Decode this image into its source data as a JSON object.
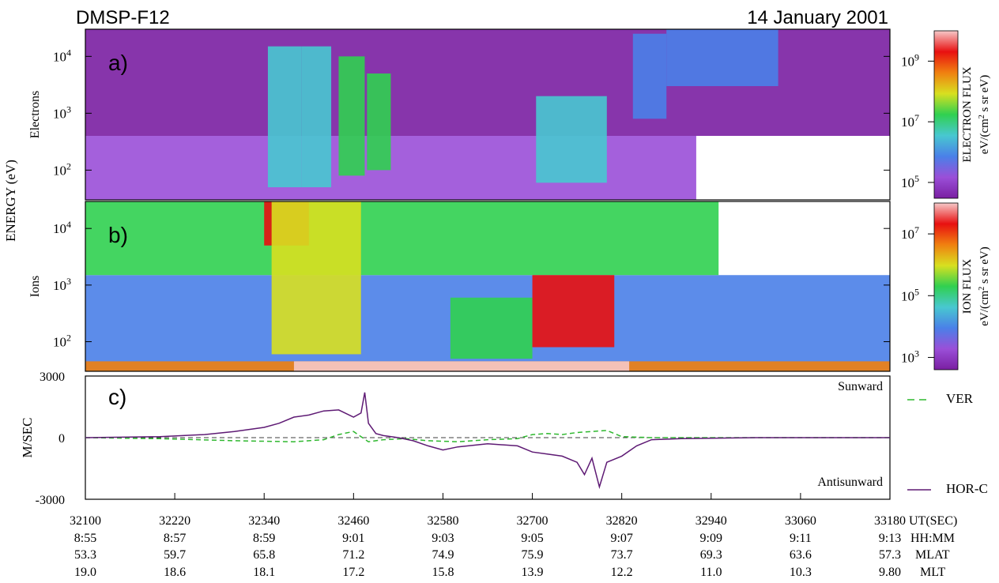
{
  "header": {
    "satellite": "DMSP-F12",
    "date": "14 January 2001"
  },
  "colors": {
    "spectrogram": [
      "#7a1fa2",
      "#9a4fd8",
      "#4a80e8",
      "#48c8d0",
      "#30d050",
      "#d8e020",
      "#f08010",
      "#e81010",
      "#f6c8c8"
    ],
    "ver_line": "#2fb82f",
    "hor_line": "#5e1a74"
  },
  "chart_data": [
    {
      "id": "a",
      "type": "heatmap",
      "panel_label": "a)",
      "ylabel": "Electrons",
      "shared_ylabel": "ENERGY (eV)",
      "y_scale": "log",
      "ylim": [
        30,
        30000
      ],
      "y_ticks": [
        {
          "exp": "2",
          "value": 100
        },
        {
          "exp": "3",
          "value": 1000
        },
        {
          "exp": "4",
          "value": 10000
        }
      ],
      "colorbar": {
        "label": "ELECTRON FLUX",
        "units": "eV/(cm",
        "units_sup": "2",
        "units_tail": " s sr eV)",
        "scale": "log",
        "range": [
          30000,
          10000000000
        ],
        "ticks": [
          {
            "exp": "5",
            "value": 100000
          },
          {
            "exp": "7",
            "value": 10000000
          },
          {
            "exp": "9",
            "value": 1000000000
          }
        ]
      },
      "regions": [
        {
          "t": [
            32100,
            32920
          ],
          "e": [
            30,
            400
          ],
          "level": 0.12
        },
        {
          "t": [
            32100,
            33180
          ],
          "e": [
            400,
            30000
          ],
          "level": 0.05
        },
        {
          "t": [
            32345,
            32390
          ],
          "e": [
            50,
            15000
          ],
          "level": 0.42
        },
        {
          "t": [
            32390,
            32430
          ],
          "e": [
            50,
            15000
          ],
          "level": 0.36
        },
        {
          "t": [
            32440,
            32475
          ],
          "e": [
            80,
            10000
          ],
          "level": 0.45
        },
        {
          "t": [
            32478,
            32510
          ],
          "e": [
            100,
            5000
          ],
          "level": 0.55
        },
        {
          "t": [
            32705,
            32800
          ],
          "e": [
            60,
            2000
          ],
          "level": 0.38
        },
        {
          "t": [
            32835,
            32880
          ],
          "e": [
            800,
            25000
          ],
          "level": 0.22
        },
        {
          "t": [
            32880,
            33030
          ],
          "e": [
            3000,
            30000
          ],
          "level": 0.28
        }
      ]
    },
    {
      "id": "b",
      "type": "heatmap",
      "panel_label": "b)",
      "ylabel": "Ions",
      "y_scale": "log",
      "ylim": [
        30,
        30000
      ],
      "y_ticks": [
        {
          "exp": "2",
          "value": 100
        },
        {
          "exp": "3",
          "value": 1000
        },
        {
          "exp": "4",
          "value": 10000
        }
      ],
      "colorbar": {
        "label": "ION FLUX",
        "units": "eV/(cm",
        "units_sup": "2",
        "units_tail": " s sr eV)",
        "scale": "log",
        "range": [
          400,
          100000000
        ],
        "ticks": [
          {
            "exp": "3",
            "value": 1000
          },
          {
            "exp": "5",
            "value": 100000
          },
          {
            "exp": "7",
            "value": 10000000
          }
        ]
      },
      "regions": [
        {
          "t": [
            32100,
            33180
          ],
          "e": [
            30,
            1500
          ],
          "level": 0.3
        },
        {
          "t": [
            32100,
            32950
          ],
          "e": [
            1500,
            30000
          ],
          "level": 0.45
        },
        {
          "t": [
            32340,
            32400
          ],
          "e": [
            5000,
            30000
          ],
          "level": 0.9
        },
        {
          "t": [
            32350,
            32470
          ],
          "e": [
            60,
            30000
          ],
          "level": 0.6
        },
        {
          "t": [
            32590,
            32700
          ],
          "e": [
            50,
            600
          ],
          "level": 0.55
        },
        {
          "t": [
            32700,
            32810
          ],
          "e": [
            80,
            1500
          ],
          "level": 0.85
        },
        {
          "t": [
            32100,
            33180
          ],
          "e": [
            30,
            45
          ],
          "level": 0.72
        },
        {
          "t": [
            32380,
            32830
          ],
          "e": [
            30,
            45
          ],
          "level": 0.95
        }
      ]
    },
    {
      "id": "c",
      "type": "line",
      "panel_label": "c)",
      "ylabel": "M/SEC",
      "ylim": [
        -3000,
        3000
      ],
      "y_ticks": [
        "3000",
        "0",
        "-3000"
      ],
      "y_tick_values": [
        3000,
        0,
        -3000
      ],
      "annotations": {
        "top": "Sunward",
        "bottom": "Antisunward"
      },
      "series": [
        {
          "name": "VER",
          "style": "dashed",
          "x": [
            32100,
            32200,
            32300,
            32380,
            32420,
            32440,
            32460,
            32480,
            32500,
            32530,
            32560,
            32600,
            32640,
            32680,
            32700,
            32720,
            32740,
            32760,
            32780,
            32800,
            32820,
            32860,
            32900,
            33000,
            33180
          ],
          "y": [
            0,
            -50,
            -150,
            -200,
            -100,
            150,
            300,
            -200,
            -100,
            -50,
            -150,
            -200,
            -100,
            -50,
            150,
            200,
            150,
            250,
            300,
            350,
            50,
            0,
            0,
            0,
            0
          ]
        },
        {
          "name": "HOR-C",
          "style": "solid",
          "x": [
            32100,
            32200,
            32260,
            32300,
            32340,
            32360,
            32380,
            32400,
            32420,
            32440,
            32460,
            32470,
            32475,
            32480,
            32490,
            32500,
            32520,
            32540,
            32560,
            32580,
            32600,
            32640,
            32680,
            32700,
            32720,
            32740,
            32760,
            32770,
            32780,
            32790,
            32800,
            32820,
            32840,
            32860,
            32900,
            33000,
            33180
          ],
          "y": [
            0,
            50,
            150,
            300,
            500,
            700,
            1000,
            1100,
            1300,
            1350,
            1000,
            1200,
            2200,
            700,
            200,
            100,
            0,
            -150,
            -400,
            -600,
            -450,
            -300,
            -400,
            -700,
            -800,
            -900,
            -1200,
            -1800,
            -1000,
            -2400,
            -1200,
            -900,
            -400,
            -100,
            -50,
            0,
            0
          ]
        }
      ]
    }
  ],
  "time_axis": {
    "label_row_names": [
      "UT(SEC)",
      "HH:MM",
      "MLAT",
      "MLT"
    ],
    "ticks": [
      {
        "ut": "32100",
        "hhmm": "8:55",
        "mlat": "53.3",
        "mlt": "19.0"
      },
      {
        "ut": "32220",
        "hhmm": "8:57",
        "mlat": "59.7",
        "mlt": "18.6"
      },
      {
        "ut": "32340",
        "hhmm": "8:59",
        "mlat": "65.8",
        "mlt": "18.1"
      },
      {
        "ut": "32460",
        "hhmm": "9:01",
        "mlat": "71.2",
        "mlt": "17.2"
      },
      {
        "ut": "32580",
        "hhmm": "9:03",
        "mlat": "74.9",
        "mlt": "15.8"
      },
      {
        "ut": "32700",
        "hhmm": "9:05",
        "mlat": "75.9",
        "mlt": "13.9"
      },
      {
        "ut": "32820",
        "hhmm": "9:07",
        "mlat": "73.7",
        "mlt": "12.2"
      },
      {
        "ut": "32940",
        "hhmm": "9:09",
        "mlat": "69.3",
        "mlt": "11.0"
      },
      {
        "ut": "33060",
        "hhmm": "9:11",
        "mlat": "63.6",
        "mlt": "10.3"
      },
      {
        "ut": "33180",
        "hhmm": "9:13",
        "mlat": "57.3",
        "mlt": "9.80"
      }
    ],
    "range": [
      32100,
      33180
    ]
  }
}
